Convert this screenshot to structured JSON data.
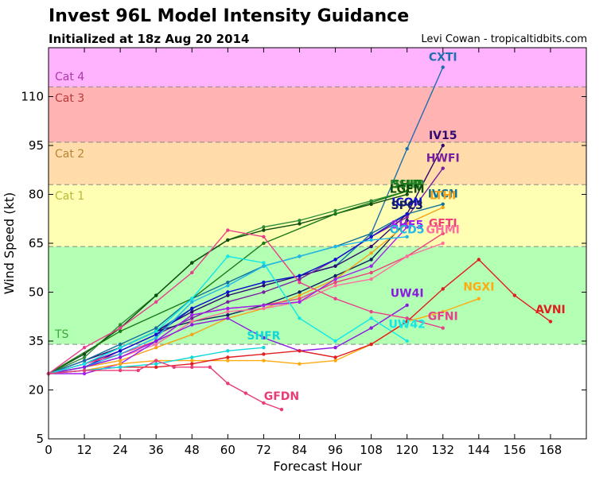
{
  "title": "Invest 96L Model Intensity Guidance",
  "subtitle": "Initialized at 18z Aug 20 2014",
  "credit": "Levi Cowan - tropicaltidbits.com",
  "chart_data": {
    "type": "line",
    "xlabel": "Forecast Hour",
    "ylabel": "Wind Speed (kt)",
    "xlim": [
      0,
      180
    ],
    "ylim": [
      5,
      125
    ],
    "xticks": [
      0,
      12,
      24,
      36,
      48,
      60,
      72,
      84,
      96,
      108,
      120,
      132,
      144,
      156,
      168
    ],
    "yticks": [
      5,
      20,
      35,
      50,
      65,
      80,
      95,
      110
    ],
    "bands": [
      {
        "label": "TS",
        "from": 34,
        "to": 64,
        "color": "#b3ffb3",
        "label_color": "#3aa83a"
      },
      {
        "label": "Cat 1",
        "from": 64,
        "to": 83,
        "color": "#ffffb3",
        "label_color": "#b8b83a"
      },
      {
        "label": "Cat 2",
        "from": 83,
        "to": 96,
        "color": "#ffdcaa",
        "label_color": "#b8863a"
      },
      {
        "label": "Cat 3",
        "from": 96,
        "to": 113,
        "color": "#ffb3b3",
        "label_color": "#b83a3a"
      },
      {
        "label": "Cat 4",
        "from": 113,
        "to": 125,
        "color": "#ffb3ff",
        "label_color": "#a83aa8"
      }
    ],
    "series": [
      {
        "name": "CXTI",
        "color": "#1f6eb0",
        "x": [
          0,
          12,
          24,
          36,
          48,
          60,
          72,
          84,
          96,
          108,
          120,
          132
        ],
        "y": [
          25,
          28,
          33,
          38,
          45,
          50,
          53,
          55,
          58,
          68,
          94,
          119
        ]
      },
      {
        "name": "IV15",
        "color": "#2d0a6e",
        "x": [
          0,
          12,
          24,
          36,
          48,
          60,
          72,
          84,
          96,
          108,
          120,
          132
        ],
        "y": [
          25,
          29,
          33,
          38,
          44,
          49,
          52,
          55,
          58,
          64,
          74,
          95
        ]
      },
      {
        "name": "HWFI",
        "color": "#7a1ea1",
        "x": [
          0,
          12,
          24,
          36,
          48,
          60,
          72,
          84,
          96,
          108,
          120,
          132
        ],
        "y": [
          25,
          28,
          32,
          37,
          42,
          47,
          50,
          54,
          60,
          67,
          73,
          88
        ]
      },
      {
        "name": "DSHP",
        "color": "#2e8b3a",
        "x": [
          0,
          12,
          24,
          36,
          48,
          60,
          72,
          84,
          96,
          108,
          120
        ],
        "y": [
          25,
          30,
          40,
          49,
          59,
          66,
          70,
          72,
          75,
          78,
          81
        ]
      },
      {
        "name": "LGEM",
        "color": "#0f4d0f",
        "x": [
          0,
          12,
          24,
          36,
          48,
          60,
          72,
          84,
          96,
          108,
          120
        ],
        "y": [
          25,
          31,
          39,
          49,
          59,
          66,
          69,
          71,
          74,
          77,
          80
        ]
      },
      {
        "name": "SHIP",
        "color": "#1a7a1a",
        "x": [
          0,
          24,
          48,
          72,
          96,
          120
        ],
        "y": [
          25,
          38,
          48,
          65,
          74,
          81
        ]
      },
      {
        "name": "IVCN",
        "color": "#12709a",
        "x": [
          0,
          12,
          24,
          36,
          48,
          60,
          72,
          84,
          96,
          108,
          120,
          132
        ],
        "y": [
          25,
          29,
          34,
          39,
          48,
          53,
          58,
          61,
          64,
          68,
          74,
          77
        ]
      },
      {
        "name": "ICON",
        "color": "#1010d0",
        "x": [
          0,
          12,
          24,
          36,
          48,
          60,
          72,
          84,
          96,
          108,
          120
        ],
        "y": [
          25,
          27,
          32,
          37,
          45,
          50,
          53,
          55,
          60,
          67,
          74
        ]
      },
      {
        "name": "SPC3",
        "color": "#102060",
        "x": [
          0,
          12,
          24,
          36,
          48,
          60,
          72,
          84,
          96,
          108,
          120
        ],
        "y": [
          25,
          28,
          33,
          38,
          41,
          43,
          46,
          50,
          55,
          60,
          72
        ]
      },
      {
        "name": "LTHI",
        "color": "#f5a31a",
        "x": [
          0,
          12,
          24,
          36,
          48,
          60,
          72,
          84,
          96,
          108,
          120,
          132
        ],
        "y": [
          25,
          27,
          29,
          33,
          37,
          42,
          45,
          49,
          54,
          62,
          71,
          76
        ]
      },
      {
        "name": "GFTI",
        "color": "#f0407a",
        "x": [
          0,
          12,
          24,
          36,
          48,
          60,
          72,
          84,
          96,
          108,
          120,
          132
        ],
        "y": [
          25,
          28,
          31,
          35,
          43,
          45,
          46,
          48,
          53,
          56,
          61,
          68
        ]
      },
      {
        "name": "GHMI",
        "color": "#ff6fa0",
        "x": [
          0,
          12,
          24,
          36,
          48,
          60,
          72,
          84,
          96,
          108,
          120,
          132
        ],
        "y": [
          25,
          27,
          30,
          34,
          41,
          44,
          45,
          47,
          52,
          54,
          61,
          65
        ]
      },
      {
        "name": "SHF5",
        "color": "#a020f0",
        "x": [
          0,
          12,
          24,
          36,
          48,
          60,
          72,
          84,
          96,
          108,
          120
        ],
        "y": [
          25,
          25,
          28,
          35,
          43,
          45,
          46,
          47,
          54,
          58,
          70
        ]
      },
      {
        "name": "OCD5",
        "color": "#20b8e8",
        "x": [
          0,
          12,
          24,
          36,
          48,
          60,
          72,
          84,
          96,
          108,
          120
        ],
        "y": [
          25,
          27,
          31,
          36,
          47,
          52,
          58,
          61,
          64,
          66,
          67
        ]
      },
      {
        "name": "UW4I",
        "color": "#8a1ae0",
        "x": [
          0,
          12,
          24,
          36,
          48,
          60,
          72,
          84,
          96,
          108,
          120
        ],
        "y": [
          25,
          27,
          30,
          35,
          40,
          42,
          36,
          32,
          33,
          39,
          46
        ]
      },
      {
        "name": "UW42",
        "color": "#10e8e8",
        "x": [
          0,
          12,
          24,
          36,
          48,
          60,
          72,
          84,
          96,
          108,
          120
        ],
        "y": [
          25,
          28,
          33,
          38,
          48,
          61,
          59,
          42,
          35,
          42,
          35
        ]
      },
      {
        "name": "GFNI",
        "color": "#e8408a",
        "x": [
          0,
          12,
          24,
          36,
          48,
          60,
          72,
          84,
          96,
          108,
          120,
          132
        ],
        "y": [
          25,
          33,
          39,
          47,
          56,
          69,
          67,
          53,
          48,
          44,
          42,
          39
        ]
      },
      {
        "name": "NGXI",
        "color": "#ffaa10",
        "x": [
          0,
          12,
          24,
          36,
          48,
          60,
          72,
          84,
          96,
          108,
          120,
          132,
          144
        ],
        "y": [
          25,
          26,
          28,
          29,
          29,
          29,
          29,
          28,
          29,
          34,
          41,
          44,
          48
        ]
      },
      {
        "name": "AVNI",
        "color": "#e02020",
        "x": [
          0,
          12,
          24,
          36,
          48,
          60,
          72,
          84,
          96,
          108,
          120,
          132,
          144,
          156,
          168
        ],
        "y": [
          25,
          26,
          27,
          27,
          28,
          30,
          31,
          32,
          30,
          34,
          41,
          51,
          60,
          49,
          41
        ]
      },
      {
        "name": "SHFR",
        "color": "#10d8d8",
        "x": [
          0,
          12,
          24,
          36,
          48,
          60,
          72
        ],
        "y": [
          25,
          26,
          27,
          28,
          30,
          32,
          33
        ]
      },
      {
        "name": "GFDN",
        "color": "#e83c78",
        "x": [
          0,
          12,
          24,
          30,
          36,
          42,
          48,
          54,
          60,
          66,
          72,
          78
        ],
        "y": [
          25,
          26,
          26,
          26,
          29,
          27,
          27,
          27,
          22,
          19,
          16,
          14
        ]
      }
    ],
    "labels": [
      {
        "text": "CXTI",
        "series": "CXTI",
        "color": "#1f6eb0",
        "x": 132,
        "y": 121
      },
      {
        "text": "IV15",
        "series": "IV15",
        "color": "#2d0a6e",
        "x": 132,
        "y": 97
      },
      {
        "text": "HWFI",
        "series": "HWFI",
        "color": "#7a1ea1",
        "x": 132,
        "y": 90
      },
      {
        "text": "DSHP",
        "series": "DSHP",
        "color": "#2e8b3a",
        "x": 120,
        "y": 82
      },
      {
        "text": "SHIP",
        "series": "SHIP",
        "color": "#1a7a1a",
        "x": 120,
        "y": 82
      },
      {
        "text": "LGEM",
        "series": "LGEM",
        "color": "#0f4d0f",
        "x": 120,
        "y": 80.5
      },
      {
        "text": "IVCN",
        "series": "IVCN",
        "color": "#12709a",
        "x": 132,
        "y": 79
      },
      {
        "text": "LTHI",
        "series": "LTHI",
        "color": "#f5a31a",
        "x": 132,
        "y": 78.5
      },
      {
        "text": "ICON",
        "series": "ICON",
        "color": "#1010d0",
        "x": 120,
        "y": 76.5
      },
      {
        "text": "SPC3",
        "series": "SPC3",
        "color": "#102060",
        "x": 120,
        "y": 75.5
      },
      {
        "text": "GFTI",
        "series": "GFTI",
        "color": "#f0407a",
        "x": 132,
        "y": 70
      },
      {
        "text": "SHF5",
        "series": "SHF5",
        "color": "#a020f0",
        "x": 120,
        "y": 69.5
      },
      {
        "text": "GHMI",
        "series": "GHMI",
        "color": "#ff6fa0",
        "x": 132,
        "y": 68
      },
      {
        "text": "OCD5",
        "series": "OCD5",
        "color": "#20b8e8",
        "x": 120,
        "y": 68
      },
      {
        "text": "NGXI",
        "series": "NGXI",
        "color": "#ffaa10",
        "x": 144,
        "y": 50.5
      },
      {
        "text": "UW4I",
        "series": "UW4I",
        "color": "#8a1ae0",
        "x": 120,
        "y": 48.5
      },
      {
        "text": "AVNI",
        "series": "AVNI",
        "color": "#e02020",
        "x": 168,
        "y": 43.5
      },
      {
        "text": "GFNI",
        "series": "GFNI",
        "color": "#e8408a",
        "x": 132,
        "y": 41.5
      },
      {
        "text": "UW42",
        "series": "UW42",
        "color": "#10e8e8",
        "x": 120,
        "y": 39
      },
      {
        "text": "SHFR",
        "series": "SHFR",
        "color": "#10d8d8",
        "x": 72,
        "y": 35.5
      },
      {
        "text": "GFDN",
        "series": "GFDN",
        "color": "#e83c78",
        "x": 78,
        "y": 17
      }
    ],
    "grid": false,
    "legend": "none"
  }
}
